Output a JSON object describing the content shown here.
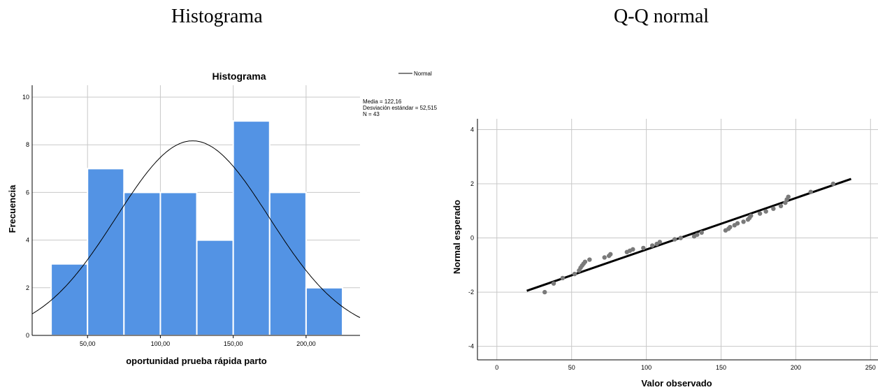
{
  "headings": {
    "left": "Histograma",
    "right": "Q-Q normal"
  },
  "colors": {
    "bar_fill": "#5393e4",
    "bar_stroke": "#ffffff",
    "grid": "#c8c8c8",
    "curve": "#000000",
    "qq_point": "#7a7a7a",
    "qq_line": "#000000"
  },
  "chart_data": [
    {
      "type": "bar",
      "title": "Histograma",
      "xlabel": "oportunidad prueba rápida parto",
      "ylabel": "Frecuencia",
      "legend": {
        "entry": "Normal",
        "placement": "top-right"
      },
      "stats": [
        "Media = 122,16",
        "Desviación estándar = 52,515",
        "N = 43"
      ],
      "bins": [
        {
          "from": 25,
          "to": 50,
          "count": 3
        },
        {
          "from": 50,
          "to": 75,
          "count": 7
        },
        {
          "from": 75,
          "to": 100,
          "count": 6
        },
        {
          "from": 100,
          "to": 125,
          "count": 6
        },
        {
          "from": 125,
          "to": 150,
          "count": 4
        },
        {
          "from": 150,
          "to": 175,
          "count": 9
        },
        {
          "from": 175,
          "to": 200,
          "count": 6
        },
        {
          "from": 200,
          "to": 225,
          "count": 2
        }
      ],
      "normal_curve": {
        "mean": 122.16,
        "sd": 52.515,
        "n": 43,
        "bin_width": 25
      },
      "xlim": [
        12,
        237
      ],
      "ylim": [
        0,
        10.5
      ],
      "xticks": [
        50,
        100,
        150,
        200
      ],
      "xtick_labels": [
        "50,00",
        "100,00",
        "150,00",
        "200,00"
      ],
      "yticks": [
        0,
        2,
        4,
        6,
        8,
        10
      ],
      "ytick_labels": [
        "0",
        "2",
        "4",
        "6",
        "8",
        "10"
      ],
      "grid": true
    },
    {
      "type": "scatter",
      "title": "",
      "xlabel": "Valor observado",
      "ylabel": "Normal esperado",
      "xlim": [
        -13,
        255
      ],
      "ylim": [
        -4.5,
        4.4
      ],
      "xticks": [
        0,
        50,
        100,
        150,
        200,
        250
      ],
      "xtick_labels": [
        "0",
        "50",
        "100",
        "150",
        "200",
        "250"
      ],
      "yticks": [
        -4,
        -2,
        0,
        2,
        4
      ],
      "ytick_labels": [
        "-4",
        "-2",
        "0",
        "2",
        "4"
      ],
      "grid": true,
      "reference_line": {
        "x": [
          20,
          237
        ],
        "y": [
          -1.95,
          2.18
        ]
      },
      "points": [
        [
          32,
          -2.0
        ],
        [
          38,
          -1.68
        ],
        [
          44,
          -1.48
        ],
        [
          52,
          -1.33
        ],
        [
          55,
          -1.2
        ],
        [
          56,
          -1.1
        ],
        [
          57,
          -1.02
        ],
        [
          58,
          -0.95
        ],
        [
          59,
          -0.88
        ],
        [
          62,
          -0.8
        ],
        [
          72,
          -0.72
        ],
        [
          75,
          -0.66
        ],
        [
          76,
          -0.6
        ],
        [
          87,
          -0.52
        ],
        [
          89,
          -0.47
        ],
        [
          91,
          -0.42
        ],
        [
          98,
          -0.37
        ],
        [
          104,
          -0.28
        ],
        [
          107,
          -0.22
        ],
        [
          109,
          -0.15
        ],
        [
          119,
          -0.05
        ],
        [
          123,
          0.0
        ],
        [
          132,
          0.06
        ],
        [
          134,
          0.12
        ],
        [
          137,
          0.2
        ],
        [
          153,
          0.28
        ],
        [
          155,
          0.34
        ],
        [
          156,
          0.4
        ],
        [
          159,
          0.47
        ],
        [
          161,
          0.54
        ],
        [
          165,
          0.6
        ],
        [
          168,
          0.68
        ],
        [
          169,
          0.74
        ],
        [
          170,
          0.82
        ],
        [
          176,
          0.9
        ],
        [
          180,
          0.98
        ],
        [
          185,
          1.08
        ],
        [
          190,
          1.18
        ],
        [
          193,
          1.3
        ],
        [
          194,
          1.42
        ],
        [
          195,
          1.52
        ],
        [
          210,
          1.7
        ],
        [
          225,
          2.0
        ]
      ]
    }
  ]
}
